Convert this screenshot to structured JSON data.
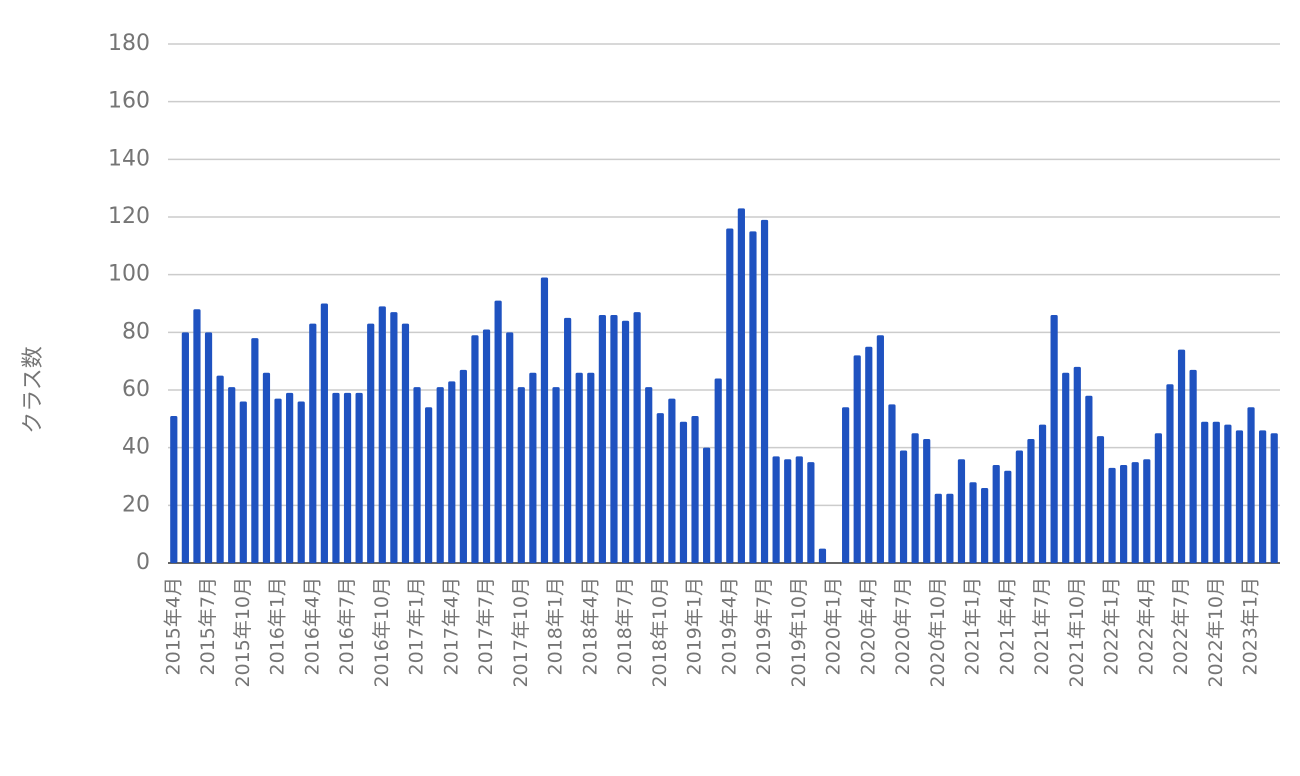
{
  "chart_data": {
    "type": "bar",
    "y_label": "クラス数",
    "categories": [
      "2015年4月",
      null,
      null,
      "2015年7月",
      null,
      null,
      "2015年10月",
      null,
      null,
      "2016年1月",
      null,
      null,
      "2016年4月",
      null,
      null,
      "2016年7月",
      null,
      null,
      "2016年10月",
      null,
      null,
      "2017年1月",
      null,
      null,
      "2017年4月",
      null,
      null,
      "2017年7月",
      null,
      null,
      "2017年10月",
      null,
      null,
      "2018年1月",
      null,
      null,
      "2018年4月",
      null,
      null,
      "2018年7月",
      null,
      null,
      "2018年10月",
      null,
      null,
      "2019年1月",
      null,
      null,
      "2019年4月",
      null,
      null,
      "2019年7月",
      null,
      null,
      "2019年10月",
      null,
      null,
      "2020年1月",
      null,
      null,
      "2020年4月",
      null,
      null,
      "2020年7月",
      null,
      null,
      "2020年10月",
      null,
      null,
      "2021年1月",
      null,
      null,
      "2021年4月",
      null,
      null,
      "2021年7月",
      null,
      null,
      "2021年10月",
      null,
      null,
      "2022年1月",
      null,
      null,
      "2022年4月",
      null,
      null,
      "2022年7月",
      null,
      null,
      "2022年10月",
      null,
      null,
      "2023年1月",
      null,
      null
    ],
    "values": [
      51,
      80,
      88,
      80,
      65,
      61,
      56,
      78,
      66,
      57,
      59,
      56,
      83,
      90,
      59,
      59,
      59,
      83,
      89,
      87,
      83,
      61,
      54,
      61,
      63,
      67,
      79,
      81,
      91,
      80,
      61,
      66,
      99,
      61,
      85,
      66,
      66,
      86,
      86,
      84,
      87,
      61,
      52,
      57,
      49,
      51,
      40,
      64,
      116,
      123,
      115,
      119,
      37,
      36,
      37,
      35,
      5,
      0,
      54,
      72,
      75,
      79,
      55,
      39,
      45,
      43,
      24,
      24,
      36,
      28,
      26,
      34,
      32,
      39,
      43,
      48,
      86,
      66,
      68,
      58,
      44,
      33,
      34,
      35,
      36,
      45,
      62,
      74,
      67,
      49,
      49,
      48,
      46,
      54,
      46,
      45
    ],
    "color": "#1f52c0",
    "ylim": [
      0,
      180
    ],
    "yticks": [
      0,
      20,
      40,
      60,
      80,
      100,
      120,
      140,
      160,
      180
    ],
    "grid": true
  }
}
